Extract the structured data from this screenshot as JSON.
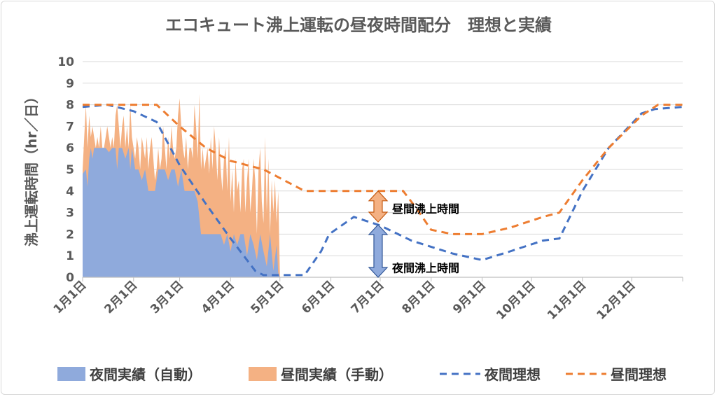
{
  "chart_data": {
    "type": "area",
    "title": "エコキュート沸上運転の昼夜時間配分　理想と実績",
    "xlabel": "",
    "ylabel": "沸上運転時間（hr／日）",
    "ylim": [
      0,
      10
    ],
    "yticks": [
      "0",
      "1",
      "2",
      "3",
      "4",
      "5",
      "6",
      "7",
      "8",
      "9",
      "10"
    ],
    "xlim": [
      0,
      365
    ],
    "xticks": [
      {
        "label": "1月1日",
        "day": 0
      },
      {
        "label": "2月1日",
        "day": 31
      },
      {
        "label": "3月1日",
        "day": 59
      },
      {
        "label": "4月1日",
        "day": 90
      },
      {
        "label": "5月1日",
        "day": 120
      },
      {
        "label": "6月1日",
        "day": 151
      },
      {
        "label": "7月1日",
        "day": 181
      },
      {
        "label": "8月1日",
        "day": 212
      },
      {
        "label": "9月1日",
        "day": 243
      },
      {
        "label": "10月1日",
        "day": 273
      },
      {
        "label": "11月1日",
        "day": 304
      },
      {
        "label": "12月1日",
        "day": 334
      }
    ],
    "grid": true,
    "legend_position": "bottom",
    "colors": {
      "night_actual": "#8faadc",
      "day_actual": "#f4b183",
      "night_ideal": "#4472c4",
      "day_ideal": "#ed7d31"
    },
    "series": [
      {
        "name": "夜間実績（自動）",
        "style": "filled-area",
        "x": [
          0,
          2,
          3,
          4,
          5,
          6,
          7,
          8,
          9,
          10,
          12,
          14,
          16,
          18,
          20,
          21,
          22,
          24,
          26,
          28,
          29,
          30,
          32,
          34,
          36,
          38,
          40,
          42,
          44,
          46,
          48,
          50,
          52,
          54,
          56,
          58,
          60,
          62,
          64,
          66,
          68,
          70,
          72,
          74,
          76,
          78,
          80,
          82,
          84,
          86,
          88,
          90,
          92,
          94,
          96,
          98,
          100,
          102,
          104,
          106,
          108,
          110,
          112,
          114,
          116,
          118,
          119,
          120
        ],
        "values": [
          4.8,
          5,
          4.2,
          5.5,
          6,
          5.5,
          6,
          6,
          6,
          6,
          6,
          6,
          5.8,
          6,
          6,
          5,
          6,
          6,
          5.5,
          6,
          5,
          6,
          5,
          5,
          4.5,
          5,
          4,
          4,
          4,
          5,
          5,
          5,
          4.5,
          5,
          5,
          4.2,
          5,
          4,
          4,
          4,
          4,
          3.5,
          2,
          2,
          2,
          2,
          2,
          2,
          2,
          1.5,
          2,
          1.2,
          2,
          1.5,
          2,
          2,
          1,
          2,
          1.5,
          0.8,
          2,
          1.2,
          0.5,
          2,
          0.3,
          1.5,
          0.2,
          0
        ]
      },
      {
        "name": "昼間実績（手動）",
        "style": "filled-area",
        "x": [
          0,
          1,
          2,
          3,
          4,
          5,
          6,
          7,
          8,
          9,
          10,
          11,
          12,
          13,
          14,
          15,
          16,
          17,
          18,
          19,
          20,
          21,
          22,
          23,
          24,
          25,
          26,
          27,
          28,
          29,
          30,
          31,
          32,
          33,
          34,
          35,
          36,
          37,
          38,
          39,
          40,
          41,
          42,
          43,
          44,
          45,
          46,
          47,
          48,
          49,
          50,
          51,
          52,
          53,
          54,
          55,
          56,
          57,
          58,
          59,
          60,
          61,
          62,
          63,
          64,
          65,
          66,
          67,
          68,
          69,
          70,
          71,
          72,
          73,
          74,
          75,
          76,
          77,
          78,
          79,
          80,
          81,
          82,
          83,
          84,
          85,
          86,
          87,
          88,
          89,
          90,
          91,
          92,
          93,
          94,
          95,
          96,
          97,
          98,
          99,
          100,
          101,
          102,
          103,
          104,
          105,
          106,
          107,
          108,
          109,
          110,
          111,
          112,
          113,
          114,
          115,
          116,
          117,
          118,
          119,
          120
        ],
        "values": [
          5,
          6.5,
          8,
          6,
          7.5,
          6.5,
          7,
          6.5,
          6,
          6.5,
          6,
          7,
          6,
          6,
          6.5,
          7,
          6.5,
          6,
          6.5,
          6,
          7.5,
          8,
          7,
          6,
          7,
          7.5,
          6,
          7,
          6,
          8,
          6.5,
          6,
          5.5,
          6.5,
          6,
          5,
          6.5,
          6,
          5.5,
          6.5,
          5,
          6,
          6.5,
          5.5,
          4.5,
          5,
          6,
          5,
          5.5,
          7,
          6,
          5,
          6.5,
          5.5,
          7,
          6,
          5.5,
          6,
          7.5,
          8.3,
          7,
          6,
          5.5,
          6.5,
          5,
          6,
          6,
          5.5,
          8,
          7,
          5.5,
          8.5,
          5,
          6,
          5,
          5.5,
          6,
          4.8,
          6.5,
          5,
          7,
          6,
          4.5,
          6.5,
          5,
          4,
          5.5,
          6,
          4,
          6.5,
          3.5,
          5,
          3,
          5.5,
          4,
          4.5,
          3,
          5,
          5.5,
          3,
          4.5,
          5.5,
          3,
          4,
          5.5,
          4.5,
          2,
          5,
          6,
          3.5,
          2.5,
          6.5,
          3,
          5.5,
          2,
          4.5,
          3,
          4.5,
          2.5,
          4,
          0
        ]
      },
      {
        "name": "夜間理想",
        "style": "dashed-line",
        "x": [
          0,
          15,
          31,
          45,
          59,
          75,
          90,
          105,
          110,
          120,
          135,
          145,
          150,
          165,
          181,
          200,
          225,
          243,
          260,
          280,
          290,
          304,
          320,
          340,
          348,
          365
        ],
        "values": [
          7.9,
          8,
          7.7,
          7.2,
          5.2,
          3.4,
          1.8,
          0.3,
          0.1,
          0.1,
          0.1,
          1.2,
          2,
          2.8,
          2.4,
          1.7,
          1.1,
          0.8,
          1.2,
          1.7,
          1.8,
          4,
          6,
          7.6,
          7.8,
          7.9
        ]
      },
      {
        "name": "昼間理想",
        "style": "dashed-line",
        "x": [
          0,
          15,
          31,
          45,
          59,
          75,
          90,
          110,
          120,
          135,
          150,
          165,
          181,
          195,
          203,
          212,
          225,
          243,
          260,
          280,
          290,
          304,
          320,
          340,
          350,
          365
        ],
        "values": [
          8,
          8,
          8,
          8,
          7,
          6,
          5.4,
          5,
          4.6,
          4,
          4,
          4,
          4,
          4,
          3.2,
          2.2,
          2,
          2,
          2.3,
          2.8,
          3,
          4.5,
          6,
          7.5,
          8,
          8
        ]
      }
    ],
    "annotations": [
      {
        "text": "昼間沸上時間",
        "x": 181,
        "y_from": 2.5,
        "y_to": 4
      },
      {
        "text": "夜間沸上時間",
        "x": 181,
        "y_from": 0,
        "y_to": 2.5
      }
    ]
  }
}
